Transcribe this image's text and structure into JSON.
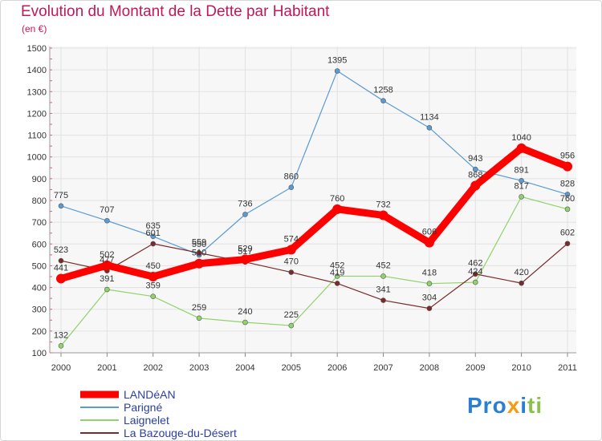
{
  "chart_data": {
    "type": "line",
    "title": "Evolution du Montant de la Dette par Habitant",
    "subtitle": "(en €)",
    "xlabel": "",
    "ylabel": "",
    "x": [
      "2000",
      "2001",
      "2002",
      "2003",
      "2004",
      "2005",
      "2006",
      "2007",
      "2008",
      "2009",
      "2010",
      "2011"
    ],
    "ylim": [
      100,
      1500
    ],
    "yticks": [
      100,
      200,
      300,
      400,
      500,
      600,
      700,
      800,
      900,
      1000,
      1100,
      1200,
      1300,
      1400,
      1500
    ],
    "grid": true,
    "legend": "bottom-left",
    "series": [
      {
        "name": "LANDéAN",
        "color": "#ff0000",
        "values": [
          441,
          502,
          450,
          510,
          529,
          574,
          760,
          732,
          606,
          868,
          1040,
          956
        ]
      },
      {
        "name": "Parigné",
        "color": "#5b9bd5",
        "values": [
          775,
          707,
          635,
          550,
          736,
          860,
          1395,
          1258,
          1134,
          943,
          891,
          828
        ]
      },
      {
        "name": "Laignelet",
        "color": "#8fd36b",
        "values": [
          132,
          391,
          359,
          259,
          240,
          225,
          452,
          452,
          418,
          424,
          817,
          760
        ]
      },
      {
        "name": "La Bazouge-du-Désert",
        "color": "#7b2a2a",
        "values": [
          523,
          477,
          601,
          559,
          517,
          470,
          419,
          341,
          304,
          462,
          420,
          602
        ]
      }
    ]
  },
  "logo": [
    "Pro",
    "x",
    "i",
    "ti"
  ]
}
